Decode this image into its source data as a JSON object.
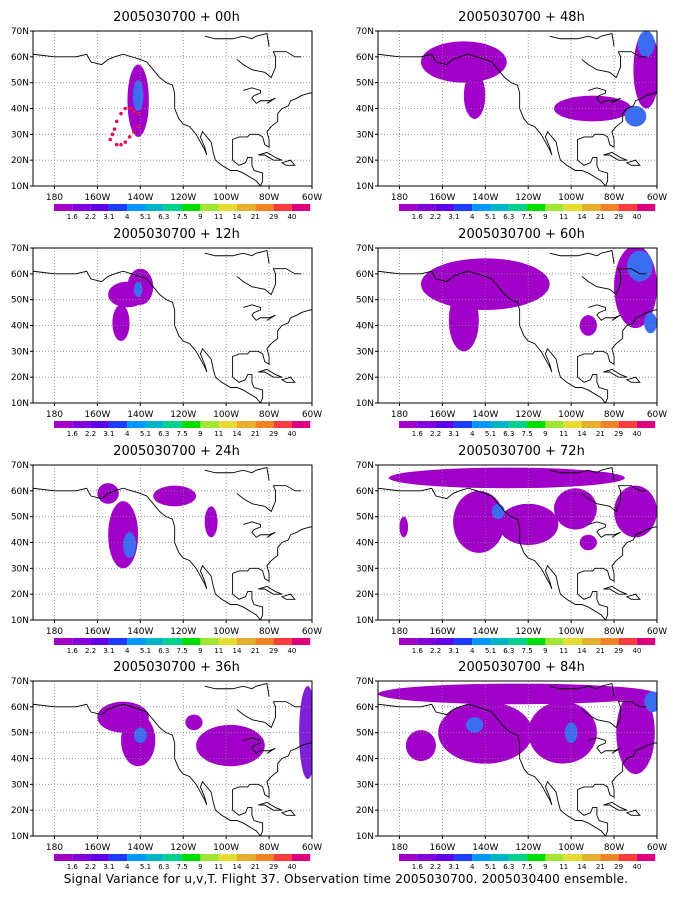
{
  "panels": [
    {
      "title": "2005030700 + 00h",
      "col": 0,
      "row": 0,
      "features": [
        {
          "type": "blob",
          "lon": -141,
          "lat": 43,
          "rx": 5,
          "ry": 14,
          "level": 0
        },
        {
          "type": "blob",
          "lon": -141,
          "lat": 45,
          "rx": 2.5,
          "ry": 6,
          "level": 2
        },
        {
          "type": "track",
          "points": [
            [
              -141,
              38
            ],
            [
              -143,
              39
            ],
            [
              -145,
              40
            ],
            [
              -147,
              40
            ],
            [
              -149,
              38
            ],
            [
              -151,
              35
            ],
            [
              -152,
              32
            ],
            [
              -153,
              30
            ],
            [
              -154,
              28
            ],
            [
              -151,
              26
            ],
            [
              -149,
              26
            ],
            [
              -147,
              27
            ],
            [
              -145,
              29
            ],
            [
              -143,
              31
            ],
            [
              -141,
              33
            ]
          ]
        }
      ]
    },
    {
      "title": "2005030700 + 12h",
      "col": 0,
      "row": 1,
      "features": [
        {
          "type": "blob",
          "lon": -146,
          "lat": 52,
          "rx": 9,
          "ry": 5,
          "level": 0
        },
        {
          "type": "blob",
          "lon": -149,
          "lat": 41,
          "rx": 4,
          "ry": 7,
          "level": 0
        },
        {
          "type": "blob",
          "lon": -140,
          "lat": 55,
          "rx": 6,
          "ry": 7,
          "level": 0
        },
        {
          "type": "blob",
          "lon": -141,
          "lat": 54,
          "rx": 2,
          "ry": 3,
          "level": 2
        }
      ]
    },
    {
      "title": "2005030700 + 24h",
      "col": 0,
      "row": 2,
      "features": [
        {
          "type": "blob",
          "lon": -148,
          "lat": 43,
          "rx": 7,
          "ry": 13,
          "level": 0
        },
        {
          "type": "blob",
          "lon": -145,
          "lat": 39,
          "rx": 3,
          "ry": 5,
          "level": 2
        },
        {
          "type": "blob",
          "lon": -155,
          "lat": 59,
          "rx": 5,
          "ry": 4,
          "level": 0
        },
        {
          "type": "blob",
          "lon": -124,
          "lat": 58,
          "rx": 10,
          "ry": 4,
          "level": 0
        },
        {
          "type": "blob",
          "lon": -107,
          "lat": 48,
          "rx": 3,
          "ry": 6,
          "level": 0
        }
      ]
    },
    {
      "title": "2005030700 + 36h",
      "col": 0,
      "row": 3,
      "features": [
        {
          "type": "blob",
          "lon": -148,
          "lat": 56,
          "rx": 12,
          "ry": 6,
          "level": 0
        },
        {
          "type": "blob",
          "lon": -141,
          "lat": 47,
          "rx": 8,
          "ry": 10,
          "level": 0
        },
        {
          "type": "blob",
          "lon": -140,
          "lat": 49,
          "rx": 3,
          "ry": 3,
          "level": 2
        },
        {
          "type": "blob",
          "lon": -98,
          "lat": 45,
          "rx": 16,
          "ry": 8,
          "level": 0
        },
        {
          "type": "blob",
          "lon": -115,
          "lat": 54,
          "rx": 4,
          "ry": 3,
          "level": 0
        },
        {
          "type": "blob",
          "lon": -62,
          "lat": 50,
          "rx": 4,
          "ry": 18,
          "level": 1
        }
      ]
    },
    {
      "title": "2005030700 + 48h",
      "col": 1,
      "row": 0,
      "features": [
        {
          "type": "blob",
          "lon": -150,
          "lat": 58,
          "rx": 20,
          "ry": 8,
          "level": 0
        },
        {
          "type": "blob",
          "lon": -145,
          "lat": 45,
          "rx": 5,
          "ry": 9,
          "level": 0
        },
        {
          "type": "blob",
          "lon": -90,
          "lat": 40,
          "rx": 18,
          "ry": 5,
          "level": 0
        },
        {
          "type": "blob",
          "lon": -65,
          "lat": 55,
          "rx": 6,
          "ry": 15,
          "level": 0
        },
        {
          "type": "blob",
          "lon": -70,
          "lat": 37,
          "rx": 5,
          "ry": 4,
          "level": 2
        },
        {
          "type": "blob",
          "lon": -65,
          "lat": 65,
          "rx": 4,
          "ry": 5,
          "level": 2
        }
      ]
    },
    {
      "title": "2005030700 + 60h",
      "col": 1,
      "row": 1,
      "features": [
        {
          "type": "blob",
          "lon": -140,
          "lat": 56,
          "rx": 30,
          "ry": 10,
          "level": 0
        },
        {
          "type": "blob",
          "lon": -150,
          "lat": 42,
          "rx": 7,
          "ry": 12,
          "level": 0
        },
        {
          "type": "blob",
          "lon": -92,
          "lat": 40,
          "rx": 4,
          "ry": 4,
          "level": 0
        },
        {
          "type": "blob",
          "lon": -70,
          "lat": 55,
          "rx": 10,
          "ry": 16,
          "level": 0
        },
        {
          "type": "blob",
          "lon": -68,
          "lat": 63,
          "rx": 6,
          "ry": 6,
          "level": 2
        },
        {
          "type": "blob",
          "lon": -63,
          "lat": 41,
          "rx": 3,
          "ry": 4,
          "level": 2
        }
      ]
    },
    {
      "title": "2005030700 + 72h",
      "col": 1,
      "row": 2,
      "features": [
        {
          "type": "blob",
          "lon": -130,
          "lat": 65,
          "rx": 55,
          "ry": 4,
          "level": 0
        },
        {
          "type": "blob",
          "lon": -143,
          "lat": 48,
          "rx": 12,
          "ry": 12,
          "level": 0
        },
        {
          "type": "blob",
          "lon": -120,
          "lat": 47,
          "rx": 14,
          "ry": 8,
          "level": 0
        },
        {
          "type": "blob",
          "lon": -98,
          "lat": 53,
          "rx": 10,
          "ry": 8,
          "level": 0
        },
        {
          "type": "blob",
          "lon": -92,
          "lat": 40,
          "rx": 4,
          "ry": 3,
          "level": 0
        },
        {
          "type": "blob",
          "lon": -70,
          "lat": 52,
          "rx": 10,
          "ry": 10,
          "level": 0
        },
        {
          "type": "blob",
          "lon": -178,
          "lat": 46,
          "rx": 2,
          "ry": 4,
          "level": 0
        },
        {
          "type": "blob",
          "lon": -134,
          "lat": 52,
          "rx": 3,
          "ry": 3,
          "level": 2
        }
      ]
    },
    {
      "title": "2005030700 + 84h",
      "col": 1,
      "row": 3,
      "features": [
        {
          "type": "blob",
          "lon": -125,
          "lat": 65,
          "rx": 65,
          "ry": 4,
          "level": 0
        },
        {
          "type": "blob",
          "lon": -140,
          "lat": 50,
          "rx": 22,
          "ry": 12,
          "level": 0
        },
        {
          "type": "blob",
          "lon": -104,
          "lat": 50,
          "rx": 16,
          "ry": 12,
          "level": 0
        },
        {
          "type": "blob",
          "lon": -170,
          "lat": 45,
          "rx": 7,
          "ry": 6,
          "level": 0
        },
        {
          "type": "blob",
          "lon": -70,
          "lat": 50,
          "rx": 9,
          "ry": 16,
          "level": 0
        },
        {
          "type": "blob",
          "lon": -145,
          "lat": 53,
          "rx": 4,
          "ry": 3,
          "level": 2
        },
        {
          "type": "blob",
          "lon": -100,
          "lat": 50,
          "rx": 3,
          "ry": 4,
          "level": 2
        },
        {
          "type": "blob",
          "lon": -62,
          "lat": 62,
          "rx": 4,
          "ry": 4,
          "level": 2
        }
      ]
    }
  ],
  "lon_ticks": [
    -180,
    -160,
    -140,
    -120,
    -100,
    -80,
    -60
  ],
  "lon_labels": [
    "180",
    "160W",
    "140W",
    "120W",
    "100W",
    "80W",
    "60W"
  ],
  "lat_ticks": [
    10,
    20,
    30,
    40,
    50,
    60,
    70
  ],
  "lat_labels": [
    "10N",
    "20N",
    "30N",
    "40N",
    "50N",
    "60N",
    "70N"
  ],
  "lon_range": [
    -190,
    -60
  ],
  "lat_range": [
    10,
    70
  ],
  "colorbar": {
    "labels": [
      "1.6",
      "2.2",
      "3.1",
      "4",
      "5.1",
      "6.3",
      "7.5",
      "9",
      "11",
      "14",
      "21",
      "29",
      "40"
    ],
    "colors": [
      "#a000c8",
      "#8200dc",
      "#5f00e6",
      "#1e3cff",
      "#0096ff",
      "#00b4c8",
      "#00d28c",
      "#00dc00",
      "#a0e632",
      "#e6dc32",
      "#e6af2d",
      "#f08228",
      "#fa3c3c",
      "#dc0080"
    ]
  },
  "shade_colors": [
    "#a000c8",
    "#7e20d8",
    "#3c6cf0"
  ],
  "track_color": "#e0105c",
  "footer": "Signal Variance for u,v,T. Flight 37. Observation time 2005030700. 2005030400 ensemble."
}
